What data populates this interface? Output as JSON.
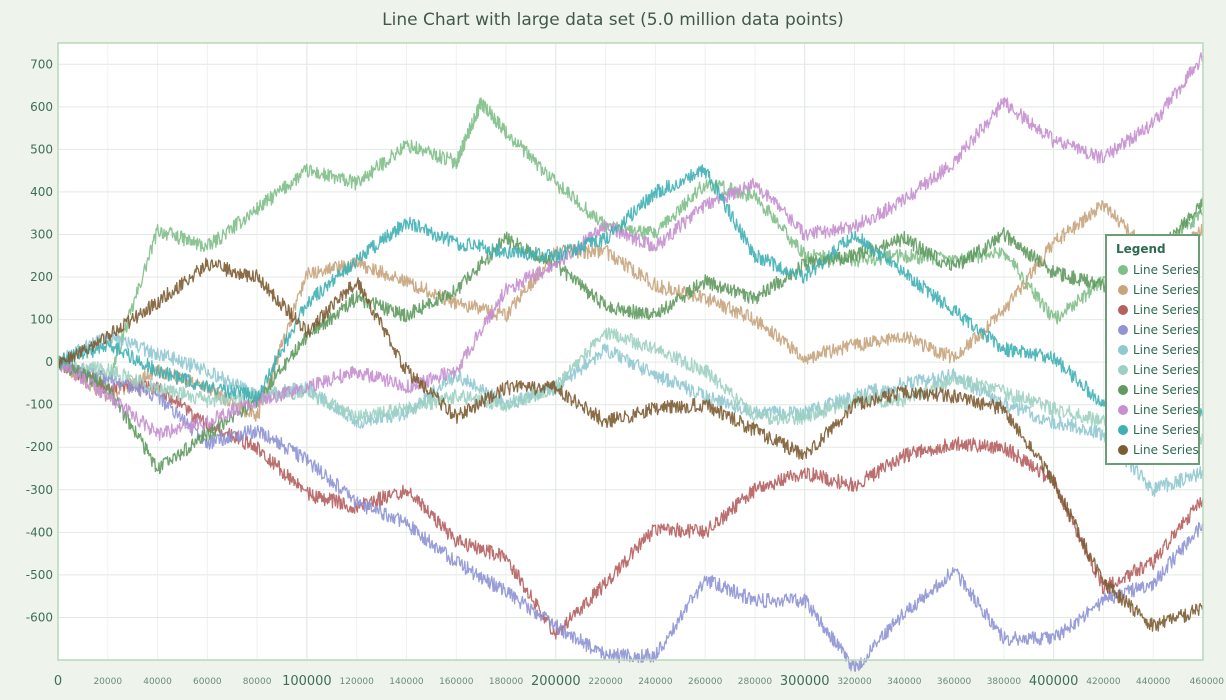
{
  "chart_data": {
    "type": "line",
    "title": "Line Chart with large data set (5.0 million data points)",
    "xlabel": "",
    "ylabel": "",
    "xlim": [
      0,
      460000
    ],
    "ylim": [
      -700,
      750
    ],
    "x_major_ticks": [
      {
        "value": 0,
        "label": "0"
      },
      {
        "value": 100000,
        "label": "100000"
      },
      {
        "value": 200000,
        "label": "200000"
      },
      {
        "value": 300000,
        "label": "300000"
      },
      {
        "value": 400000,
        "label": "400000"
      }
    ],
    "x_minor_ticks": [
      {
        "value": 20000,
        "label": "20000"
      },
      {
        "value": 40000,
        "label": "40000"
      },
      {
        "value": 60000,
        "label": "60000"
      },
      {
        "value": 80000,
        "label": "80000"
      },
      {
        "value": 120000,
        "label": "120000"
      },
      {
        "value": 140000,
        "label": "140000"
      },
      {
        "value": 160000,
        "label": "160000"
      },
      {
        "value": 180000,
        "label": "180000"
      },
      {
        "value": 220000,
        "label": "220000"
      },
      {
        "value": 240000,
        "label": "240000"
      },
      {
        "value": 260000,
        "label": "260000"
      },
      {
        "value": 280000,
        "label": "280000"
      },
      {
        "value": 320000,
        "label": "320000"
      },
      {
        "value": 340000,
        "label": "340000"
      },
      {
        "value": 360000,
        "label": "360000"
      },
      {
        "value": 380000,
        "label": "380000"
      },
      {
        "value": 420000,
        "label": "420000"
      },
      {
        "value": 440000,
        "label": "440000"
      },
      {
        "value": 460000,
        "label": "460000"
      }
    ],
    "y_ticks": [
      {
        "value": 700,
        "label": "700"
      },
      {
        "value": 600,
        "label": "600"
      },
      {
        "value": 500,
        "label": "500"
      },
      {
        "value": 400,
        "label": "400"
      },
      {
        "value": 300,
        "label": "300"
      },
      {
        "value": 200,
        "label": "200"
      },
      {
        "value": 100,
        "label": "100"
      },
      {
        "value": 0,
        "label": "0"
      },
      {
        "value": -100,
        "label": "-100"
      },
      {
        "value": -200,
        "label": "-200"
      },
      {
        "value": -300,
        "label": "-300"
      },
      {
        "value": -400,
        "label": "-400"
      },
      {
        "value": -500,
        "label": "-500"
      },
      {
        "value": -600,
        "label": "-600"
      }
    ],
    "grid": true,
    "legend": {
      "title": "Legend",
      "placement": "right"
    },
    "series": [
      {
        "name": "Line Series",
        "color": "#7fbf88",
        "x": [
          0,
          20000,
          40000,
          60000,
          80000,
          100000,
          120000,
          140000,
          160000,
          170000,
          180000,
          200000,
          220000,
          240000,
          260000,
          280000,
          300000,
          320000,
          340000,
          360000,
          380000,
          400000,
          420000,
          440000,
          460000
        ],
        "y": [
          0,
          -50,
          310,
          270,
          360,
          450,
          420,
          510,
          470,
          610,
          540,
          420,
          320,
          300,
          420,
          390,
          250,
          240,
          250,
          240,
          260,
          100,
          190,
          260,
          350
        ]
      },
      {
        "name": "Line Series",
        "color": "#c8a47c",
        "x": [
          0,
          20000,
          40000,
          60000,
          80000,
          100000,
          120000,
          140000,
          160000,
          180000,
          200000,
          220000,
          240000,
          260000,
          280000,
          300000,
          320000,
          340000,
          360000,
          380000,
          400000,
          420000,
          440000,
          460000
        ],
        "y": [
          0,
          -80,
          -20,
          -60,
          -130,
          210,
          230,
          190,
          140,
          110,
          260,
          260,
          180,
          150,
          100,
          10,
          40,
          60,
          10,
          120,
          280,
          370,
          250,
          310
        ]
      },
      {
        "name": "Line Series",
        "color": "#b55f5f",
        "x": [
          0,
          20000,
          40000,
          60000,
          80000,
          100000,
          120000,
          140000,
          160000,
          180000,
          200000,
          220000,
          240000,
          260000,
          280000,
          300000,
          320000,
          340000,
          360000,
          380000,
          400000,
          420000,
          440000,
          460000
        ],
        "y": [
          0,
          -60,
          -60,
          -150,
          -200,
          -310,
          -340,
          -300,
          -420,
          -460,
          -640,
          -520,
          -390,
          -400,
          -300,
          -260,
          -290,
          -220,
          -190,
          -200,
          -280,
          -530,
          -470,
          -320
        ]
      },
      {
        "name": "Line Series",
        "color": "#8e94d4",
        "x": [
          0,
          20000,
          40000,
          60000,
          80000,
          100000,
          120000,
          140000,
          160000,
          180000,
          200000,
          220000,
          240000,
          260000,
          280000,
          300000,
          320000,
          340000,
          360000,
          380000,
          400000,
          420000,
          440000,
          460000
        ],
        "y": [
          0,
          -40,
          -80,
          -190,
          -160,
          -230,
          -330,
          -380,
          -470,
          -540,
          -620,
          -690,
          -690,
          -510,
          -560,
          -560,
          -720,
          -590,
          -490,
          -650,
          -650,
          -560,
          -520,
          -380
        ]
      },
      {
        "name": "Line Series",
        "color": "#8fc8cf",
        "x": [
          0,
          20000,
          40000,
          60000,
          80000,
          100000,
          120000,
          140000,
          160000,
          180000,
          200000,
          220000,
          240000,
          260000,
          280000,
          300000,
          320000,
          340000,
          360000,
          380000,
          400000,
          420000,
          440000,
          460000
        ],
        "y": [
          0,
          60,
          20,
          -20,
          -80,
          -60,
          -140,
          -120,
          -30,
          -100,
          -60,
          30,
          -30,
          -80,
          -120,
          -120,
          -80,
          -50,
          -30,
          -100,
          -140,
          -170,
          -300,
          -260
        ]
      },
      {
        "name": "Line Series",
        "color": "#9dd0c2",
        "x": [
          0,
          20000,
          40000,
          60000,
          80000,
          100000,
          120000,
          140000,
          160000,
          180000,
          200000,
          220000,
          240000,
          260000,
          280000,
          300000,
          320000,
          340000,
          360000,
          380000,
          400000,
          420000,
          440000,
          460000
        ],
        "y": [
          0,
          -20,
          -60,
          -90,
          -80,
          -70,
          -130,
          -110,
          -80,
          -100,
          -60,
          70,
          30,
          -20,
          -130,
          -130,
          -90,
          -90,
          -40,
          -70,
          -110,
          -140,
          -160,
          -180
        ]
      },
      {
        "name": "Line Series",
        "color": "#5f9a5f",
        "x": [
          0,
          20000,
          40000,
          60000,
          80000,
          100000,
          120000,
          140000,
          160000,
          180000,
          200000,
          220000,
          240000,
          260000,
          280000,
          300000,
          320000,
          340000,
          360000,
          380000,
          400000,
          420000,
          440000,
          460000
        ],
        "y": [
          0,
          -60,
          -250,
          -170,
          -90,
          60,
          150,
          110,
          170,
          290,
          230,
          130,
          110,
          190,
          150,
          230,
          250,
          290,
          220,
          300,
          210,
          180,
          250,
          370
        ]
      },
      {
        "name": "Line Series",
        "color": "#c58fd0",
        "x": [
          0,
          20000,
          40000,
          60000,
          80000,
          100000,
          120000,
          140000,
          160000,
          180000,
          200000,
          220000,
          240000,
          260000,
          280000,
          300000,
          320000,
          340000,
          360000,
          380000,
          400000,
          420000,
          440000,
          460000
        ],
        "y": [
          0,
          -80,
          -170,
          -140,
          -90,
          -60,
          -20,
          -60,
          -20,
          170,
          230,
          320,
          270,
          370,
          420,
          300,
          320,
          380,
          470,
          610,
          520,
          480,
          560,
          720
        ]
      },
      {
        "name": "Line Series",
        "color": "#3fb0b4",
        "x": [
          0,
          20000,
          40000,
          60000,
          80000,
          100000,
          120000,
          140000,
          160000,
          180000,
          200000,
          220000,
          240000,
          260000,
          280000,
          300000,
          320000,
          340000,
          360000,
          380000,
          400000,
          420000,
          440000,
          460000
        ],
        "y": [
          0,
          40,
          -20,
          -60,
          -80,
          140,
          240,
          330,
          280,
          260,
          250,
          290,
          400,
          450,
          250,
          200,
          300,
          210,
          120,
          30,
          10,
          -100,
          -130,
          -120
        ]
      },
      {
        "name": "Line Series",
        "color": "#7d5c33",
        "x": [
          0,
          20000,
          40000,
          60000,
          80000,
          100000,
          120000,
          140000,
          160000,
          180000,
          200000,
          220000,
          240000,
          260000,
          280000,
          300000,
          320000,
          340000,
          360000,
          380000,
          400000,
          420000,
          440000,
          460000
        ],
        "y": [
          0,
          60,
          140,
          230,
          200,
          70,
          190,
          -20,
          -130,
          -60,
          -60,
          -140,
          -110,
          -100,
          -160,
          -220,
          -100,
          -70,
          -80,
          -110,
          -280,
          -520,
          -620,
          -580
        ]
      }
    ]
  }
}
